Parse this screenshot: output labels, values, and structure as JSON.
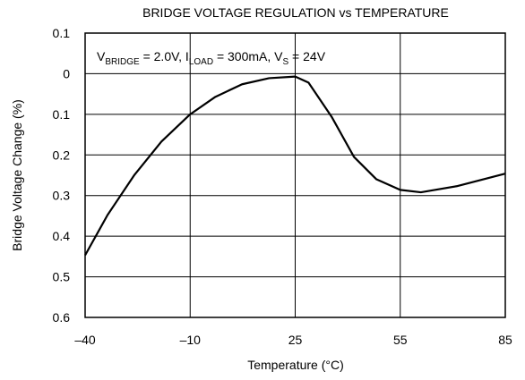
{
  "chart_data": {
    "type": "line",
    "title": "BRIDGE VOLTAGE REGULATION vs TEMPERATURE",
    "x_label": "Temperature (°C)",
    "y_label": "Bridge Voltage Change (%)",
    "annotation": [
      {
        "text": "V",
        "sub": false
      },
      {
        "text": "BRIDGE",
        "sub": true
      },
      {
        "text": " = 2.0V, I",
        "sub": false
      },
      {
        "text": "LOAD",
        "sub": true
      },
      {
        "text": " = 300mA, V",
        "sub": false
      },
      {
        "text": "S",
        "sub": true
      },
      {
        "text": " = 24V",
        "sub": false
      }
    ],
    "series": [
      {
        "color": "#000000",
        "x": [
          -40,
          -33.6,
          -25.9,
          -18.2,
          -10,
          -1.6,
          7.3,
          16.3,
          25,
          28.8,
          35.4,
          41.8,
          48.2,
          55,
          60.9,
          71.1,
          85
        ],
        "values": [
          -0.447,
          -0.348,
          -0.249,
          -0.167,
          -0.1,
          -0.057,
          -0.026,
          -0.011,
          -0.007,
          -0.022,
          -0.106,
          -0.205,
          -0.26,
          -0.286,
          -0.292,
          -0.277,
          -0.246
        ]
      }
    ],
    "xlim": [
      -40,
      85
    ],
    "xticks": [
      {
        "value": -40,
        "label": "–40"
      },
      {
        "value": -10,
        "label": "–10"
      },
      25,
      55,
      85
    ],
    "ylim": [
      -0.6,
      0.1
    ],
    "yticks": [
      0.1,
      0,
      {
        "value": -0.1,
        "label": "0.1"
      },
      {
        "value": -0.2,
        "label": "0.2"
      },
      {
        "value": -0.3,
        "label": "0.3"
      },
      {
        "value": -0.4,
        "label": "0.4"
      },
      {
        "value": -0.5,
        "label": "0.5"
      },
      {
        "value": -0.6,
        "label": "0.6"
      }
    ],
    "grid": true
  }
}
